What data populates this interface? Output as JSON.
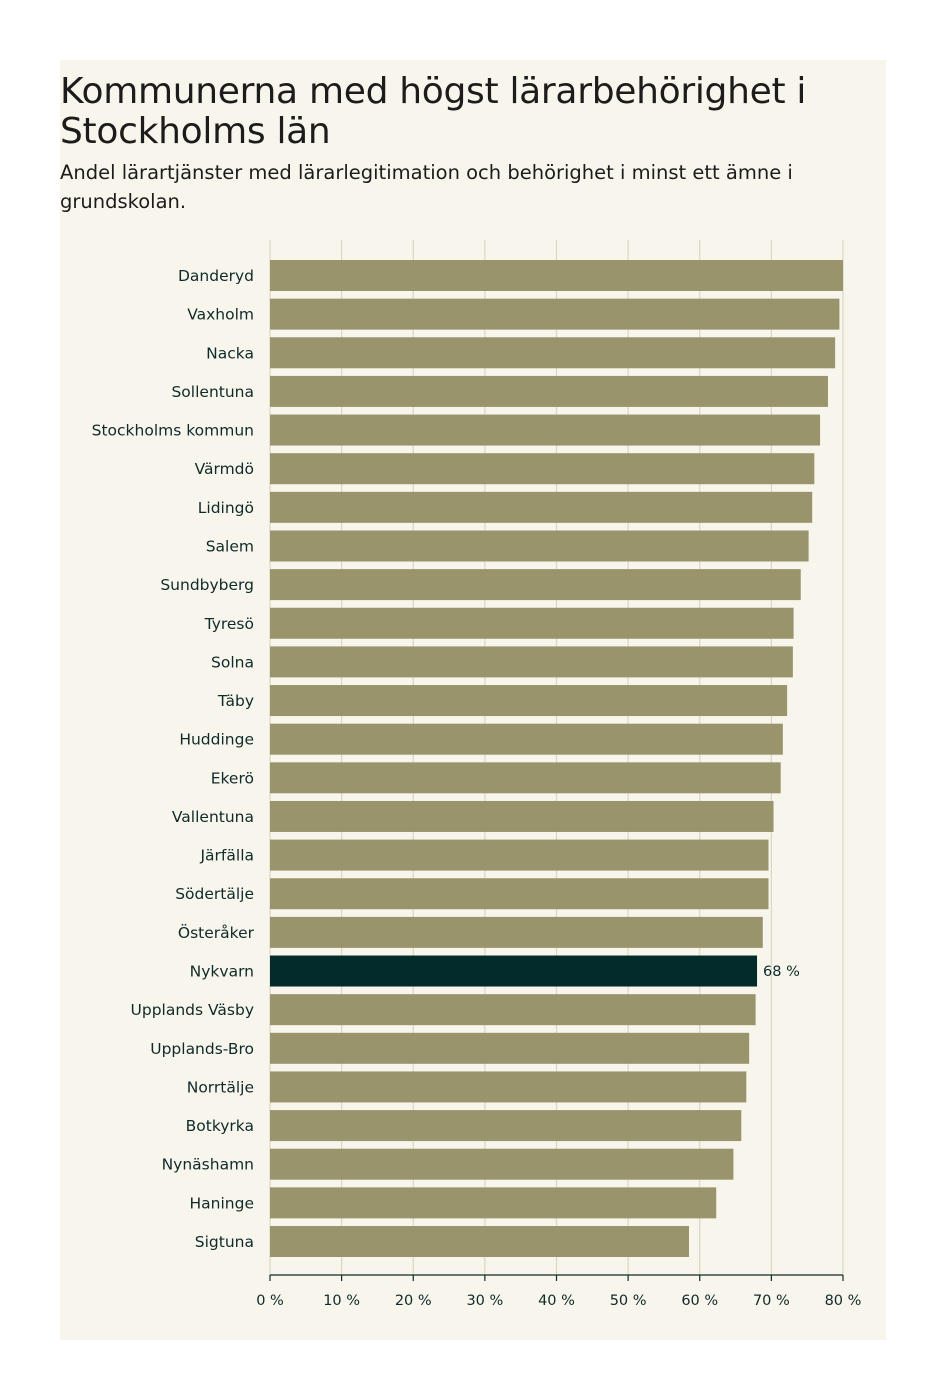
{
  "chart_data": {
    "type": "bar",
    "orientation": "horizontal",
    "title": "Kommunerna med högst lärarbehörighet i Stockholms län",
    "subtitle": "Andel lärartjänster med lärarlegitimation och behörighet i minst ett ämne i grundskolan.",
    "categories": [
      "Danderyd",
      "Vaxholm",
      "Nacka",
      "Sollentuna",
      "Stockholms kommun",
      "Värmdö",
      "Lidingö",
      "Salem",
      "Sundbyberg",
      "Tyresö",
      "Solna",
      "Täby",
      "Huddinge",
      "Ekerö",
      "Vallentuna",
      "Järfälla",
      "Södertälje",
      "Österåker",
      "Nykvarn",
      "Upplands Väsby",
      "Upplands-Bro",
      "Norrtälje",
      "Botkyrka",
      "Nynäshamn",
      "Haninge",
      "Sigtuna"
    ],
    "values": [
      80.0,
      79.5,
      78.9,
      77.9,
      76.8,
      76.0,
      75.7,
      75.2,
      74.1,
      73.1,
      73.0,
      72.2,
      71.6,
      71.3,
      70.3,
      69.6,
      69.6,
      68.8,
      68.0,
      67.8,
      66.9,
      66.5,
      65.8,
      64.7,
      62.3,
      58.5
    ],
    "highlight": "Nykvarn",
    "value_labels": [
      {
        "category": "Nykvarn",
        "text": "68 %"
      }
    ],
    "x_ticks": [
      "0 %",
      "10 %",
      "20 %",
      "30 %",
      "40 %",
      "50 %",
      "60 %",
      "70 %",
      "80 %"
    ],
    "xlim": [
      0,
      80
    ],
    "xlabel": "",
    "ylabel": "",
    "grid": true,
    "colors": {
      "bar": "#99946b",
      "highlight": "#042b2b",
      "grid": "#d9d6c8",
      "axis": "#0f2a2a"
    }
  }
}
